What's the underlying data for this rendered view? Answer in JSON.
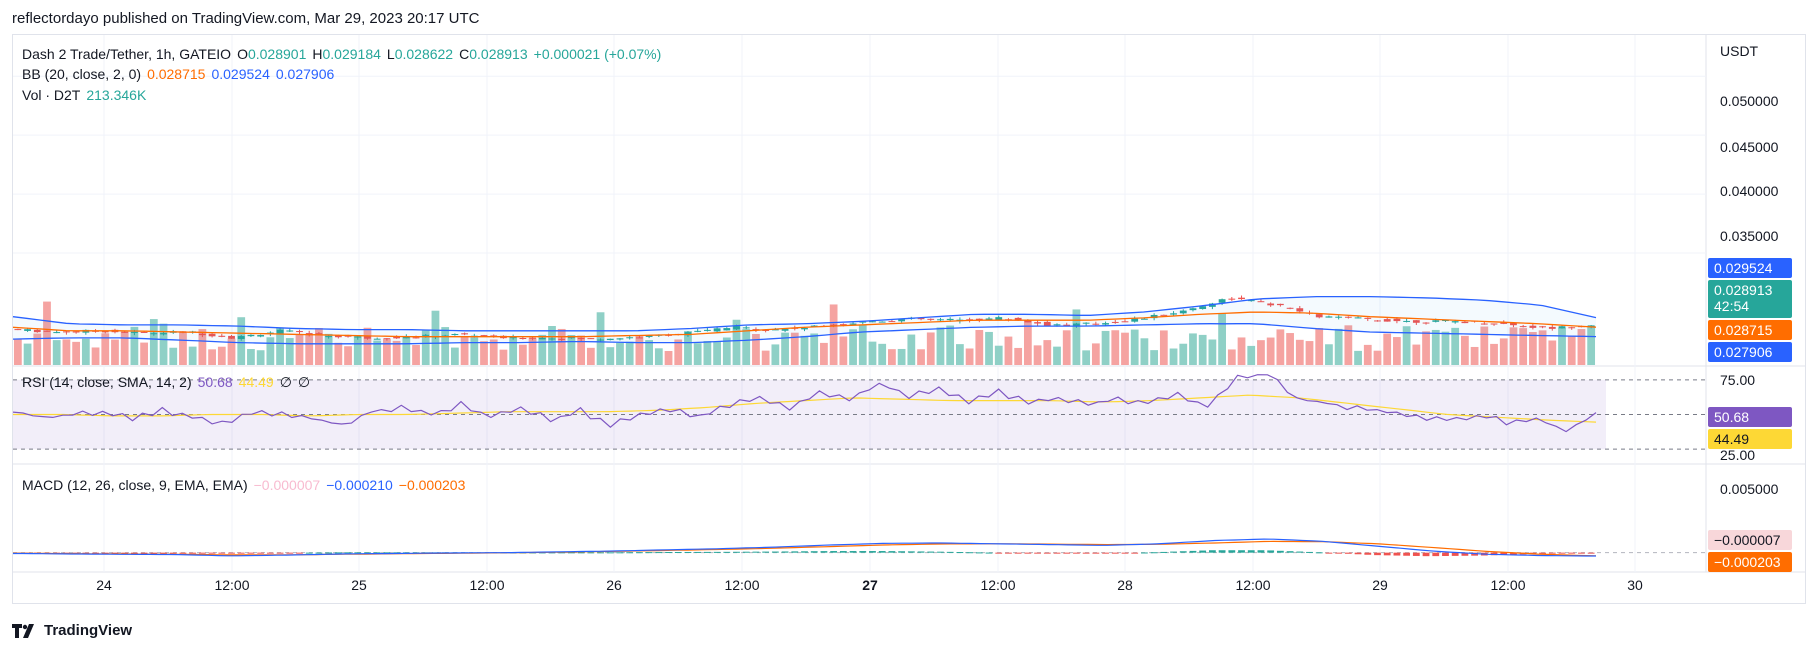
{
  "header": {
    "publisher": "reflectordayo published on TradingView.com, Mar 29, 2023 20:17 UTC"
  },
  "legend": {
    "symbol": "Dash 2 Trade/Tether, 1h, GATEIO",
    "o_label": "O",
    "o": "0.028901",
    "h_label": "H",
    "h": "0.029184",
    "l_label": "L",
    "l": "0.028622",
    "c_label": "C",
    "c": "0.028913",
    "change": "+0.000021 (+0.07%)",
    "bb_label": "BB (20, close, 2, 0)",
    "bb_mid": "0.028715",
    "bb_upper": "0.029524",
    "bb_lower": "0.027906",
    "vol_label": "Vol · D2T",
    "vol": "213.346K",
    "rsi_label": "RSI (14, close, SMA, 14, 2)",
    "rsi": "50.68",
    "rsi_sma": "44.49",
    "rsi_extra1": "∅",
    "rsi_extra2": "∅",
    "macd_label": "MACD (12, 26, close, 9, EMA, EMA)",
    "macd_hist": "−0.000007",
    "macd": "−0.000210",
    "macd_signal": "−0.000203"
  },
  "price_axis": {
    "currency": "USDT",
    "ticks": [
      "0.050000",
      "0.045000",
      "0.040000",
      "0.035000"
    ],
    "badges": {
      "upper": "0.029524",
      "last": "0.028913",
      "countdown": "42:54",
      "mid": "0.028715",
      "lower": "0.027906"
    }
  },
  "rsi_axis": {
    "ticks": [
      "75.00",
      "25.00"
    ],
    "badges": {
      "rsi": "50.68",
      "sma": "44.49"
    }
  },
  "macd_axis": {
    "ticks": [
      "0.005000"
    ],
    "badges": {
      "hist": "−0.000007",
      "signal": "−0.000203"
    }
  },
  "time_axis": [
    "24",
    "12:00",
    "25",
    "12:00",
    "26",
    "12:00",
    "27",
    "12:00",
    "28",
    "12:00",
    "29",
    "12:00",
    "30"
  ],
  "brand": "TradingView",
  "colors": {
    "up": "#26a69a",
    "down": "#ef5350",
    "vol_up": "#8fd0c6",
    "vol_down": "#f5a3a1",
    "bb_band": "#2962ff",
    "bb_mid": "#ff6d00",
    "rsi": "#7e57c2",
    "rsi_sma": "#fdd835",
    "macd": "#2962ff",
    "signal": "#ff6d00"
  },
  "chart_data": [
    {
      "type": "candlestick",
      "title": "Dash 2 Trade/Tether, 1h, GATEIO",
      "ylim": [
        0.0255,
        0.0535
      ],
      "x_range": [
        "Mar 23 21:00",
        "Mar 29 20:00"
      ],
      "close_path": [
        0.02855,
        0.0283,
        0.0284,
        0.0282,
        0.0283,
        0.0278,
        0.0284,
        0.028,
        0.0278,
        0.0279,
        0.0281,
        0.0278,
        0.0278,
        0.0277,
        0.0279,
        0.0282,
        0.0287,
        0.0285,
        0.0288,
        0.0292,
        0.0294,
        0.0293,
        0.0295,
        0.0289,
        0.029,
        0.0294,
        0.0301,
        0.0312,
        0.0306,
        0.0296,
        0.0294,
        0.0292,
        0.0292,
        0.029,
        0.0286,
        0.0289
      ],
      "bb_upper_path": [
        0.0296,
        0.029,
        0.0289,
        0.0289,
        0.0288,
        0.0286,
        0.0285,
        0.0285,
        0.0284,
        0.0284,
        0.0284,
        0.0284,
        0.0286,
        0.0289,
        0.029,
        0.0292,
        0.0295,
        0.0298,
        0.0298,
        0.0297,
        0.03,
        0.0305,
        0.0311,
        0.0313,
        0.0313,
        0.0312,
        0.031,
        0.0306,
        0.02952
      ],
      "bb_mid_path": [
        0.0287,
        0.0284,
        0.0284,
        0.0283,
        0.0282,
        0.0281,
        0.028,
        0.0279,
        0.0279,
        0.0279,
        0.0279,
        0.028,
        0.0281,
        0.0284,
        0.0287,
        0.0289,
        0.0291,
        0.0293,
        0.0293,
        0.0293,
        0.0295,
        0.0298,
        0.03,
        0.0299,
        0.0296,
        0.0294,
        0.0292,
        0.029,
        0.02871
      ],
      "bb_lower_path": [
        0.0277,
        0.0278,
        0.0278,
        0.0276,
        0.0274,
        0.0273,
        0.0273,
        0.0273,
        0.0274,
        0.0274,
        0.0275,
        0.0274,
        0.0274,
        0.0276,
        0.0279,
        0.0283,
        0.0285,
        0.0287,
        0.0288,
        0.0288,
        0.0289,
        0.029,
        0.029,
        0.0286,
        0.0283,
        0.0282,
        0.0281,
        0.028,
        0.02791
      ]
    },
    {
      "type": "line",
      "title": "RSI (14, close, SMA, 14, 2)",
      "ylim": [
        15,
        85
      ],
      "levels": [
        75,
        50,
        25
      ],
      "rsi_path": [
        52,
        48,
        50,
        51,
        47,
        53,
        49,
        44,
        52,
        50,
        47,
        43,
        52,
        55,
        50,
        57,
        49,
        55,
        46,
        53,
        42,
        51,
        54,
        49,
        57,
        61,
        55,
        67,
        60,
        72,
        64,
        68,
        60,
        66,
        58,
        62,
        57,
        61,
        58,
        64,
        56,
        76,
        79,
        61,
        58,
        55,
        52,
        48,
        46,
        49,
        45,
        47,
        38,
        50.68
      ],
      "sma_path": [
        50,
        50,
        49,
        49,
        50,
        50,
        49,
        50,
        50,
        51,
        52,
        52,
        52,
        53,
        55,
        58,
        60,
        62,
        61,
        60,
        60,
        60,
        59,
        60,
        62,
        64,
        62,
        58,
        54,
        50,
        48,
        46,
        44.49
      ]
    },
    {
      "type": "line",
      "title": "MACD (12, 26, close, 9, EMA, EMA)",
      "ylim": [
        -0.0012,
        0.0055
      ],
      "macd_path": [
        -5e-05,
        -8e-05,
        -0.0001,
        -0.00012,
        -0.0002,
        -0.00015,
        -8e-05,
        -5e-05,
        -2e-05,
        0.0,
        5e-05,
        0.0001,
        0.00018,
        0.00025,
        0.00035,
        0.00048,
        0.00058,
        0.0006,
        0.00055,
        0.0005,
        0.00045,
        0.00055,
        0.00075,
        0.00085,
        0.0007,
        0.0004,
        0.0001,
        -0.0001,
        -0.00018,
        -0.00021
      ],
      "signal_path": [
        -3e-05,
        -6e-05,
        -8e-05,
        -0.0001,
        -0.00014,
        -0.00014,
        -0.0001,
        -7e-05,
        -4e-05,
        -1e-05,
        3e-05,
        8e-05,
        0.00014,
        0.0002,
        0.00028,
        0.00038,
        0.00048,
        0.00054,
        0.00055,
        0.00053,
        0.0005,
        0.00052,
        0.0006,
        0.0007,
        0.00068,
        0.00055,
        0.00032,
        8e-05,
        -0.0001,
        -0.000203
      ]
    }
  ]
}
